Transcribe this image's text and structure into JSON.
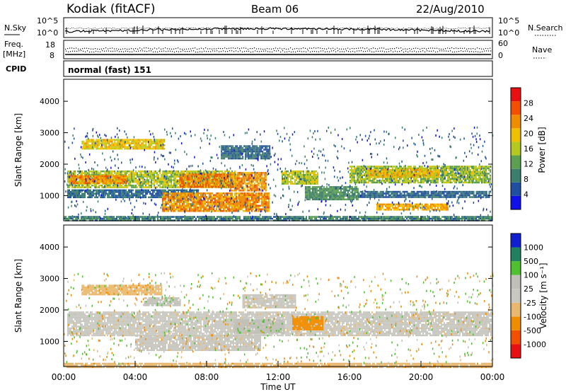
{
  "header": {
    "site": "Kodiak (fitACF)",
    "beam": "Beam 06",
    "date": "22/Aug/2010"
  },
  "panel_nsky": {
    "left_label": "N.Sky",
    "right_label": "N.Search",
    "left_ticks": [
      "10^5",
      "10^0"
    ],
    "right_ticks": [
      "10^5",
      "10^0"
    ]
  },
  "panel_freq": {
    "left_label_1": "Freq.",
    "left_label_2": "[MHz]",
    "left_ticks": [
      "18",
      "8"
    ],
    "right_ticks": [
      "60",
      "0"
    ],
    "right_label": "Nave"
  },
  "panel_cpid": {
    "label": "CPID",
    "mode": "normal (fast) 151"
  },
  "colors": {
    "power": [
      "#1010e8",
      "#1f4fa0",
      "#3c7e6e",
      "#5aa050",
      "#b4c820",
      "#f0c000",
      "#f08c00",
      "#f05000",
      "#e81010"
    ],
    "velocity": [
      "#e81010",
      "#f05000",
      "#f08c00",
      "#e8b870",
      "#c8c8c0",
      "#c0c0b8",
      "#50c030",
      "#208060",
      "#1020d0"
    ]
  },
  "chart_data": [
    {
      "type": "heatmap",
      "quantity": "Power",
      "ylabel": "Slant Range [km]",
      "xlabel": "",
      "x_range": [
        0,
        24
      ],
      "ylim": [
        200,
        4700
      ],
      "yticks": [
        1000,
        2000,
        3000,
        4000
      ],
      "colorbar": {
        "label": "Power [dB]",
        "range": [
          0,
          32
        ],
        "ticks": [
          4,
          8,
          12,
          16,
          20,
          24,
          28
        ]
      },
      "regions": [
        {
          "t0": 0.2,
          "t1": 9.6,
          "r0": 1250,
          "r1": 1800,
          "v": 18
        },
        {
          "t0": 0.3,
          "t1": 3.5,
          "r0": 1400,
          "r1": 1650,
          "v": 26
        },
        {
          "t0": 6.5,
          "t1": 9.2,
          "r0": 1300,
          "r1": 1700,
          "v": 27
        },
        {
          "t0": 0.2,
          "t1": 7.5,
          "r0": 950,
          "r1": 1200,
          "v": 8
        },
        {
          "t0": 5.5,
          "t1": 11.5,
          "r0": 500,
          "r1": 1100,
          "v": 26
        },
        {
          "t0": 9.3,
          "t1": 11.3,
          "r0": 1150,
          "r1": 1750,
          "v": 26
        },
        {
          "t0": 1.0,
          "t1": 5.6,
          "r0": 2500,
          "r1": 2800,
          "v": 21
        },
        {
          "t0": 8.8,
          "t1": 11.5,
          "r0": 2200,
          "r1": 2600,
          "v": 8
        },
        {
          "t0": 12.2,
          "t1": 14.2,
          "r0": 1400,
          "r1": 1800,
          "v": 18
        },
        {
          "t0": 13.5,
          "t1": 16.5,
          "r0": 900,
          "r1": 1300,
          "v": 12
        },
        {
          "t0": 16.0,
          "t1": 23.9,
          "r0": 1400,
          "r1": 1950,
          "v": 17
        },
        {
          "t0": 17.0,
          "t1": 21.0,
          "r0": 1600,
          "r1": 1850,
          "v": 22
        },
        {
          "t0": 16.5,
          "t1": 23.8,
          "r0": 950,
          "r1": 1150,
          "v": 8
        },
        {
          "t0": 17.5,
          "t1": 21.5,
          "r0": 550,
          "r1": 750,
          "v": 24
        },
        {
          "t0": 0.0,
          "t1": 24.0,
          "r0": 200,
          "r1": 350,
          "v": 10
        }
      ]
    },
    {
      "type": "heatmap",
      "quantity": "Velocity",
      "ylabel": "Slant Range [km]",
      "xlabel": "Time UT",
      "x_range": [
        0,
        24
      ],
      "xticks": [
        "00:00",
        "04:00",
        "08:00",
        "12:00",
        "16:00",
        "20:00",
        "00:00"
      ],
      "ylim": [
        200,
        4700
      ],
      "yticks": [
        1000,
        2000,
        3000,
        4000
      ],
      "colorbar": {
        "label": "Velocity [m s⁻¹]",
        "ticks": [
          "1000",
          "500",
          "100",
          "25",
          "-25",
          "-100",
          "-500",
          "-1000"
        ]
      },
      "regions": [
        {
          "t0": 0.2,
          "t1": 23.9,
          "r0": 1200,
          "r1": 1950,
          "v": 0
        },
        {
          "t0": 4.0,
          "t1": 11.0,
          "r0": 700,
          "r1": 1200,
          "v": 0
        },
        {
          "t0": 9.5,
          "t1": 12.3,
          "r0": 1300,
          "r1": 1700,
          "v": 100
        },
        {
          "t0": 12.8,
          "t1": 14.5,
          "r0": 1400,
          "r1": 1800,
          "v": -200
        },
        {
          "t0": 1.0,
          "t1": 5.5,
          "r0": 2500,
          "r1": 2800,
          "v": -80
        },
        {
          "t0": 4.5,
          "t1": 6.5,
          "r0": 2150,
          "r1": 2400,
          "v": 100
        },
        {
          "t0": 10.0,
          "t1": 13.0,
          "r0": 2100,
          "r1": 2500,
          "v": 0
        },
        {
          "t0": 0.0,
          "t1": 24.0,
          "r0": 200,
          "r1": 320,
          "v": -60
        }
      ]
    }
  ]
}
